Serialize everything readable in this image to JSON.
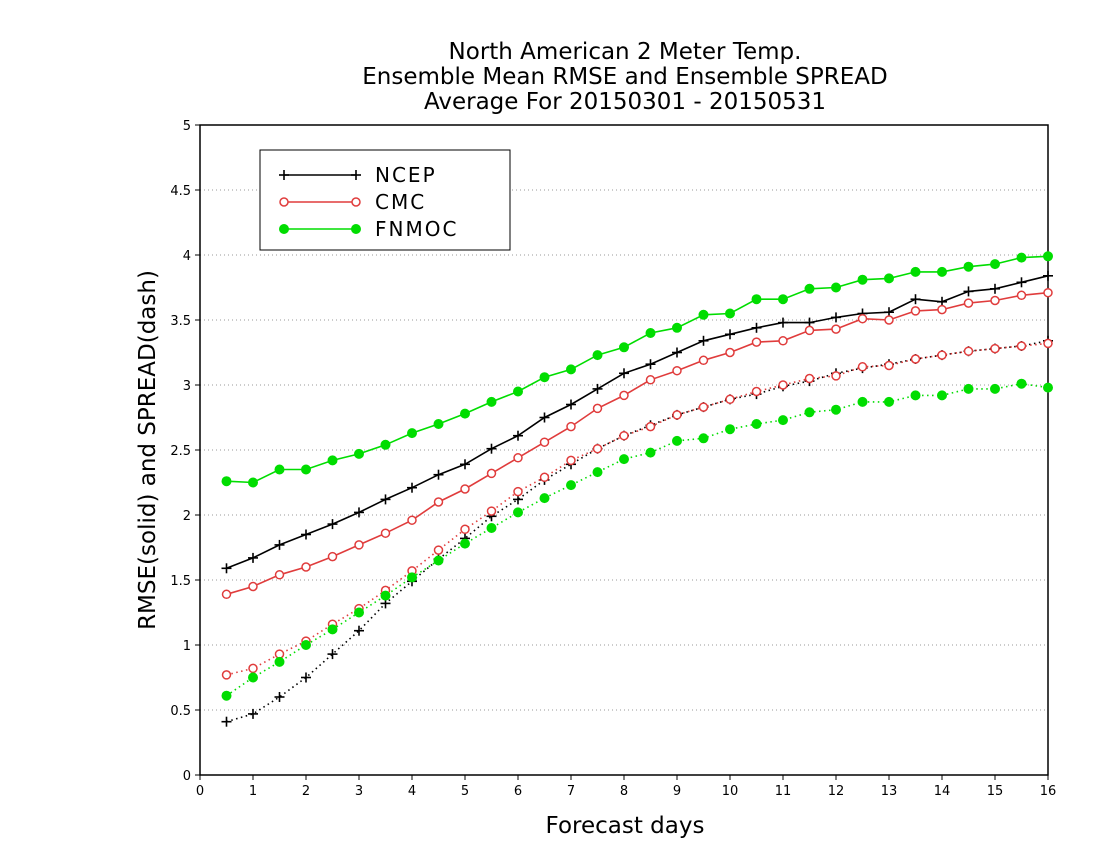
{
  "chart_data": {
    "type": "line",
    "title": [
      "North American 2 Meter Temp.",
      "Ensemble Mean RMSE and Ensemble SPREAD",
      "Average For 20150301 - 20150531"
    ],
    "xlabel": "Forecast days",
    "ylabel": "RMSE(solid) and SPREAD(dash)",
    "xlim": [
      0,
      16
    ],
    "ylim": [
      0,
      5
    ],
    "xticks": [
      0,
      1,
      2,
      3,
      4,
      5,
      6,
      7,
      8,
      9,
      10,
      11,
      12,
      13,
      14,
      15,
      16
    ],
    "yticks": [
      0,
      0.5,
      1,
      1.5,
      2,
      2.5,
      3,
      3.5,
      4,
      4.5,
      5
    ],
    "grid": "horizontal dotted",
    "legend_position": "top-left",
    "x": [
      0.5,
      1,
      1.5,
      2,
      2.5,
      3,
      3.5,
      4,
      4.5,
      5,
      5.5,
      6,
      6.5,
      7,
      7.5,
      8,
      8.5,
      9,
      9.5,
      10,
      10.5,
      11,
      11.5,
      12,
      12.5,
      13,
      13.5,
      14,
      14.5,
      15,
      15.5,
      16
    ],
    "series": [
      {
        "name": "NCEP",
        "color": "#000000",
        "marker": "plus",
        "style": "solid",
        "metric": "RMSE",
        "values": [
          1.59,
          1.67,
          1.77,
          1.85,
          1.93,
          2.02,
          2.12,
          2.21,
          2.31,
          2.39,
          2.51,
          2.61,
          2.75,
          2.85,
          2.97,
          3.09,
          3.16,
          3.25,
          3.34,
          3.39,
          3.44,
          3.48,
          3.48,
          3.52,
          3.55,
          3.56,
          3.66,
          3.64,
          3.72,
          3.74,
          3.79,
          3.84
        ]
      },
      {
        "name": "CMC",
        "color": "#e03c3c",
        "marker": "open-circle",
        "style": "solid",
        "metric": "RMSE",
        "values": [
          1.39,
          1.45,
          1.54,
          1.6,
          1.68,
          1.77,
          1.86,
          1.96,
          2.1,
          2.2,
          2.32,
          2.44,
          2.56,
          2.68,
          2.82,
          2.92,
          3.04,
          3.11,
          3.19,
          3.25,
          3.33,
          3.34,
          3.42,
          3.43,
          3.51,
          3.5,
          3.57,
          3.58,
          3.63,
          3.65,
          3.69,
          3.71
        ]
      },
      {
        "name": "FNMOC",
        "color": "#00dd00",
        "marker": "filled-circle",
        "style": "solid",
        "metric": "RMSE",
        "values": [
          2.26,
          2.25,
          2.35,
          2.35,
          2.42,
          2.47,
          2.54,
          2.63,
          2.7,
          2.78,
          2.87,
          2.95,
          3.06,
          3.12,
          3.23,
          3.29,
          3.4,
          3.44,
          3.54,
          3.55,
          3.66,
          3.66,
          3.74,
          3.75,
          3.81,
          3.82,
          3.87,
          3.87,
          3.91,
          3.93,
          3.98,
          3.99
        ]
      },
      {
        "name": "NCEP",
        "color": "#000000",
        "marker": "plus",
        "style": "dash",
        "metric": "SPREAD",
        "values": [
          0.41,
          0.47,
          0.6,
          0.75,
          0.93,
          1.11,
          1.32,
          1.49,
          1.66,
          1.82,
          1.99,
          2.12,
          2.27,
          2.39,
          2.51,
          2.61,
          2.69,
          2.77,
          2.83,
          2.89,
          2.93,
          2.99,
          3.03,
          3.09,
          3.13,
          3.16,
          3.2,
          3.23,
          3.26,
          3.28,
          3.3,
          3.34
        ]
      },
      {
        "name": "CMC",
        "color": "#e03c3c",
        "marker": "open-circle",
        "style": "dash",
        "metric": "SPREAD",
        "values": [
          0.77,
          0.82,
          0.93,
          1.03,
          1.16,
          1.28,
          1.42,
          1.57,
          1.73,
          1.89,
          2.03,
          2.18,
          2.29,
          2.42,
          2.51,
          2.61,
          2.68,
          2.77,
          2.83,
          2.89,
          2.95,
          3.0,
          3.05,
          3.07,
          3.14,
          3.15,
          3.2,
          3.23,
          3.26,
          3.28,
          3.3,
          3.32
        ]
      },
      {
        "name": "FNMOC",
        "color": "#00dd00",
        "marker": "filled-circle",
        "style": "dash",
        "metric": "SPREAD",
        "values": [
          0.61,
          0.75,
          0.87,
          1.0,
          1.12,
          1.25,
          1.38,
          1.52,
          1.65,
          1.78,
          1.9,
          2.02,
          2.13,
          2.23,
          2.33,
          2.43,
          2.48,
          2.57,
          2.59,
          2.66,
          2.7,
          2.73,
          2.79,
          2.81,
          2.87,
          2.87,
          2.92,
          2.92,
          2.97,
          2.97,
          3.01,
          2.98
        ]
      }
    ],
    "legend": [
      "NCEP",
      "CMC",
      "FNMOC"
    ]
  }
}
